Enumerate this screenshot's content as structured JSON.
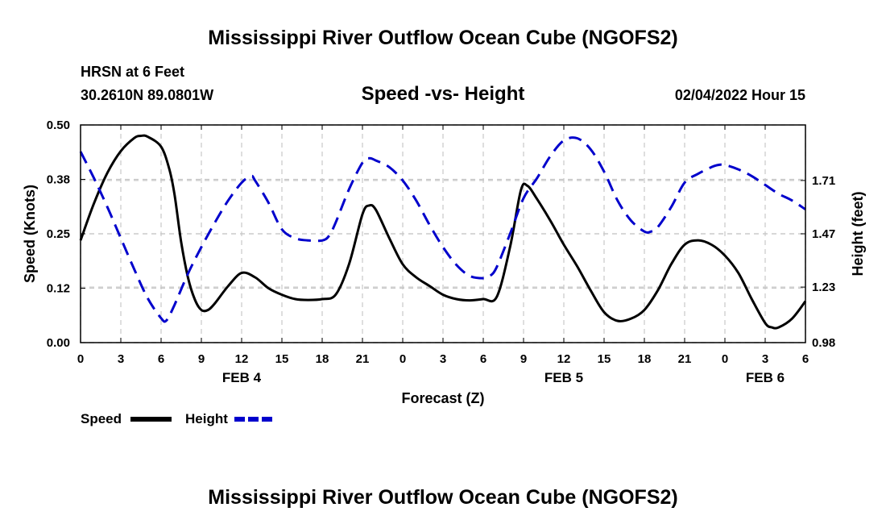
{
  "header": {
    "title": "Mississippi River Outflow Ocean Cube (NGOFS2)",
    "station": "HRSN at 6 Feet",
    "coords": "30.2610N  89.0801W",
    "subtitle": "Speed -vs- Height",
    "datetime": "02/04/2022 Hour 15"
  },
  "footer": {
    "title": "Mississippi River Outflow Ocean Cube (NGOFS2)"
  },
  "chart_data": {
    "type": "line",
    "title": "Speed -vs- Height",
    "xlabel": "Forecast (Z)",
    "ylabel_left": "Speed (Knots)",
    "ylabel_right": "Height (feet)",
    "x_range_hours": [
      0,
      54
    ],
    "x_ticks": [
      {
        "h": 0,
        "label": "0"
      },
      {
        "h": 3,
        "label": "3"
      },
      {
        "h": 6,
        "label": "6"
      },
      {
        "h": 9,
        "label": "9"
      },
      {
        "h": 12,
        "label": "12"
      },
      {
        "h": 15,
        "label": "15"
      },
      {
        "h": 18,
        "label": "18"
      },
      {
        "h": 21,
        "label": "21"
      },
      {
        "h": 24,
        "label": "0"
      },
      {
        "h": 27,
        "label": "3"
      },
      {
        "h": 30,
        "label": "6"
      },
      {
        "h": 33,
        "label": "9"
      },
      {
        "h": 36,
        "label": "12"
      },
      {
        "h": 39,
        "label": "15"
      },
      {
        "h": 42,
        "label": "18"
      },
      {
        "h": 45,
        "label": "21"
      },
      {
        "h": 48,
        "label": "0"
      },
      {
        "h": 51,
        "label": "3"
      },
      {
        "h": 54,
        "label": "6"
      }
    ],
    "date_labels": [
      {
        "h": 12,
        "label": "FEB 4"
      },
      {
        "h": 36,
        "label": "FEB 5"
      },
      {
        "h": 51,
        "label": "FEB 6"
      }
    ],
    "left_axis": {
      "ylim": [
        0,
        0.5
      ],
      "ticks": [
        0.0,
        0.125,
        0.25,
        0.375,
        0.5
      ],
      "tick_labels": [
        "0.00",
        "0.12",
        "0.25",
        "0.38",
        "0.50"
      ]
    },
    "right_axis": {
      "ylim": [
        0.98,
        1.96
      ],
      "ticks": [
        0.98,
        1.23,
        1.47,
        1.71
      ],
      "tick_labels": [
        "0.98",
        "1.23",
        "1.47",
        "1.71"
      ]
    },
    "grid": true,
    "series": [
      {
        "name": "Speed",
        "axis": "left",
        "color": "#000000",
        "style": "solid",
        "x": [
          0,
          1,
          2,
          3,
          4,
          4.5,
          5,
          6,
          6.6,
          7,
          7.5,
          8,
          8.5,
          9,
          9.5,
          10,
          11,
          12,
          13,
          14,
          15,
          16,
          17,
          18,
          19,
          20,
          21,
          21.5,
          22,
          23,
          24,
          25,
          26,
          27,
          28,
          29,
          30,
          31,
          32,
          32.8,
          33.3,
          34,
          35,
          36,
          37,
          38,
          39,
          40,
          41,
          42,
          43,
          44,
          45,
          46,
          47,
          48,
          49,
          50,
          51,
          51.5,
          52,
          53,
          54
        ],
        "values": [
          0.235,
          0.32,
          0.39,
          0.44,
          0.47,
          0.475,
          0.473,
          0.45,
          0.4,
          0.34,
          0.23,
          0.15,
          0.1,
          0.075,
          0.075,
          0.09,
          0.13,
          0.16,
          0.15,
          0.125,
          0.11,
          0.1,
          0.098,
          0.1,
          0.11,
          0.18,
          0.295,
          0.315,
          0.305,
          0.24,
          0.18,
          0.15,
          0.13,
          0.11,
          0.1,
          0.097,
          0.1,
          0.105,
          0.22,
          0.35,
          0.36,
          0.33,
          0.28,
          0.225,
          0.175,
          0.12,
          0.07,
          0.05,
          0.055,
          0.075,
          0.12,
          0.18,
          0.225,
          0.235,
          0.225,
          0.2,
          0.16,
          0.1,
          0.045,
          0.035,
          0.035,
          0.055,
          0.095
        ]
      },
      {
        "name": "Height",
        "axis": "right",
        "color": "#0000cc",
        "style": "dashed",
        "x": [
          0,
          1,
          2,
          3,
          4,
          5,
          6,
          6.4,
          7,
          8,
          9,
          10,
          11,
          12,
          12.7,
          13,
          14,
          15,
          16,
          17,
          18,
          18.5,
          19,
          20,
          21,
          21.5,
          22,
          23,
          24,
          25,
          26,
          27,
          28,
          29,
          30,
          30.5,
          31,
          32,
          33,
          34,
          35,
          36,
          37,
          38,
          39,
          40,
          41,
          42,
          42.5,
          43,
          44,
          45,
          46,
          47,
          47.5,
          48,
          49,
          50,
          51,
          52,
          53,
          54
        ],
        "values": [
          1.84,
          1.72,
          1.59,
          1.45,
          1.31,
          1.18,
          1.09,
          1.08,
          1.15,
          1.29,
          1.41,
          1.52,
          1.62,
          1.7,
          1.73,
          1.71,
          1.61,
          1.49,
          1.45,
          1.44,
          1.44,
          1.46,
          1.52,
          1.67,
          1.79,
          1.81,
          1.8,
          1.77,
          1.71,
          1.62,
          1.51,
          1.41,
          1.33,
          1.28,
          1.27,
          1.28,
          1.32,
          1.47,
          1.63,
          1.72,
          1.82,
          1.89,
          1.9,
          1.85,
          1.75,
          1.62,
          1.53,
          1.48,
          1.48,
          1.5,
          1.59,
          1.7,
          1.74,
          1.77,
          1.78,
          1.78,
          1.76,
          1.73,
          1.69,
          1.65,
          1.62,
          1.58
        ]
      }
    ],
    "legend": [
      {
        "label": "Speed",
        "color": "#000000",
        "style": "solid"
      },
      {
        "label": "Height",
        "color": "#0000cc",
        "style": "dashed"
      }
    ]
  }
}
